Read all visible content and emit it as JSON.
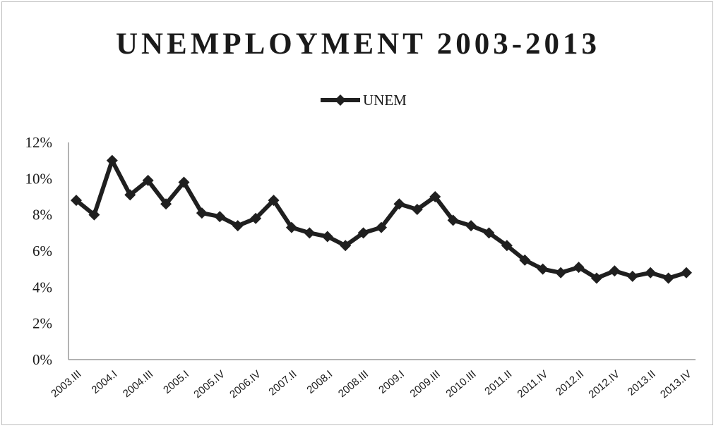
{
  "chart_data": {
    "type": "line",
    "title": "UNEMPLOYMENT 2003-2013",
    "xlabel": "",
    "ylabel": "",
    "ylim": [
      0,
      12
    ],
    "y_ticks": [
      "0%",
      "2%",
      "4%",
      "6%",
      "8%",
      "10%",
      "12%"
    ],
    "y_tick_values": [
      0,
      2,
      4,
      6,
      8,
      10,
      12
    ],
    "legend_position": "top-center",
    "grid": false,
    "x_tick_labels": [
      "2003.III",
      "2004.I",
      "2004.III",
      "2005.I",
      "2005.IV",
      "2006.IV",
      "2007.II",
      "2008.I",
      "2008.III",
      "2009.I",
      "2009.III",
      "2010.III",
      "2011.II",
      "2011.IV",
      "2012.II",
      "2012.IV",
      "2013.II",
      "2013.IV"
    ],
    "series": [
      {
        "name": "UNEM",
        "color": "#1f1f1f",
        "marker": "diamond",
        "values": [
          8.8,
          8.0,
          11.0,
          9.1,
          9.9,
          8.6,
          9.8,
          8.1,
          7.9,
          7.4,
          7.8,
          8.8,
          7.3,
          7.0,
          6.8,
          6.3,
          7.0,
          7.3,
          8.6,
          8.3,
          9.0,
          7.7,
          7.4,
          7.0,
          6.3,
          5.5,
          5.0,
          4.8,
          5.1,
          4.5,
          4.9,
          4.6,
          4.8,
          4.5,
          4.8
        ]
      }
    ]
  }
}
